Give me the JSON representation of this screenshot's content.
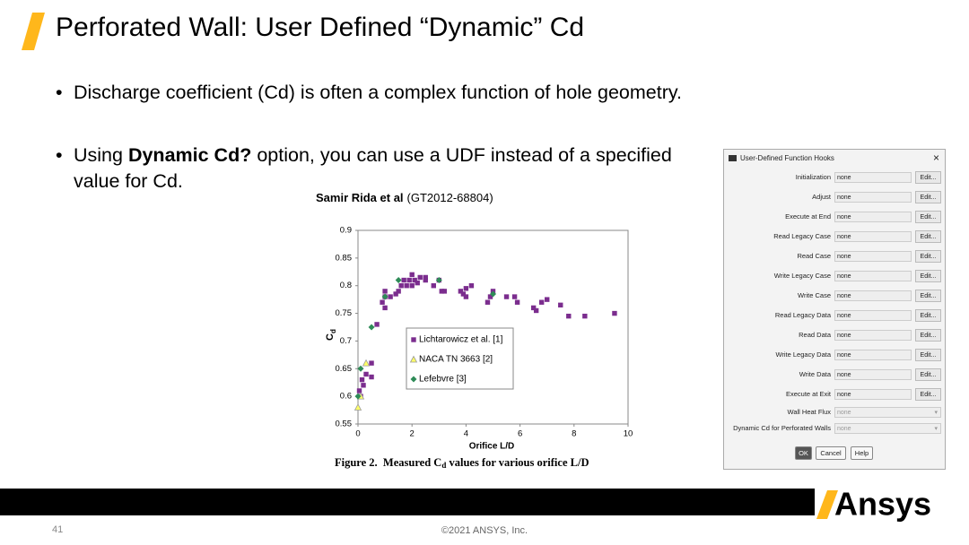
{
  "slide": {
    "title": "Perforated Wall: User Defined “Dynamic” Cd",
    "bullets": [
      {
        "text": "Discharge coefficient (Cd) is often a complex function of hole geometry."
      },
      {
        "prefix": "Using ",
        "bold": "Dynamic Cd?",
        "suffix": " option, you can use a UDF instead of a specified value for Cd."
      }
    ],
    "page_number": "41",
    "copyright": "©2021 ANSYS, Inc.",
    "logo": "Ansys"
  },
  "chart_data": {
    "type": "scatter",
    "title_bold": "Samir Rida et al",
    "title": "(GT2012-68804)",
    "caption": "Figure 2.  Measured C",
    "caption_sub": "d",
    "caption_rest": " values for various orifice L/D",
    "xlabel": "Orifice L/D",
    "ylabel": "C",
    "ylabel_sub": "d",
    "xlim": [
      0,
      10
    ],
    "xticks": [
      0,
      2,
      4,
      6,
      8,
      10
    ],
    "ylim": [
      0.55,
      0.9
    ],
    "yticks": [
      0.55,
      0.6,
      0.65,
      0.7,
      0.75,
      0.8,
      0.85,
      0.9
    ],
    "legend": "center",
    "series": [
      {
        "name": "Lichtarowicz et al. [1]",
        "color": "#7b2d8e",
        "marker": "square",
        "x": [
          0.05,
          0.1,
          0.15,
          0.2,
          0.3,
          0.5,
          0.5,
          0.7,
          0.9,
          1.0,
          1.0,
          1.0,
          1.2,
          1.4,
          1.5,
          1.6,
          1.7,
          1.8,
          1.9,
          2.0,
          2.0,
          2.1,
          2.2,
          2.3,
          2.5,
          2.5,
          2.8,
          3.0,
          3.1,
          3.2,
          3.8,
          3.9,
          4.0,
          4.0,
          4.2,
          4.8,
          4.9,
          5.0,
          5.5,
          5.8,
          5.9,
          6.5,
          6.6,
          6.8,
          7.0,
          7.5,
          7.8,
          8.4,
          9.5
        ],
        "values": [
          0.61,
          0.6,
          0.63,
          0.62,
          0.64,
          0.66,
          0.635,
          0.73,
          0.77,
          0.78,
          0.79,
          0.76,
          0.78,
          0.785,
          0.79,
          0.8,
          0.81,
          0.8,
          0.81,
          0.82,
          0.8,
          0.81,
          0.805,
          0.815,
          0.815,
          0.81,
          0.8,
          0.81,
          0.79,
          0.79,
          0.79,
          0.785,
          0.795,
          0.78,
          0.8,
          0.77,
          0.78,
          0.79,
          0.78,
          0.78,
          0.77,
          0.76,
          0.755,
          0.77,
          0.775,
          0.765,
          0.745,
          0.745,
          0.75
        ]
      },
      {
        "name": "NACA TN 3663 [2]",
        "color": "#ffff66",
        "marker": "triangle",
        "x": [
          0.0,
          0.1,
          0.3
        ],
        "values": [
          0.58,
          0.6,
          0.66
        ]
      },
      {
        "name": "Lefebvre [3]",
        "color": "#2e8b57",
        "marker": "diamond",
        "x": [
          0.0,
          0.1,
          0.5,
          1.0,
          1.5,
          3.0,
          5.0
        ],
        "values": [
          0.6,
          0.65,
          0.725,
          0.78,
          0.81,
          0.81,
          0.785
        ]
      }
    ]
  },
  "dialog": {
    "title": "User-Defined Function Hooks",
    "rows": [
      {
        "label": "Initialization",
        "value": "none",
        "button": "Edit..."
      },
      {
        "label": "Adjust",
        "value": "none",
        "button": "Edit..."
      },
      {
        "label": "Execute at End",
        "value": "none",
        "button": "Edit..."
      },
      {
        "label": "Read Legacy Case",
        "value": "none",
        "button": "Edit..."
      },
      {
        "label": "Read Case",
        "value": "none",
        "button": "Edit..."
      },
      {
        "label": "Write Legacy Case",
        "value": "none",
        "button": "Edit..."
      },
      {
        "label": "Write Case",
        "value": "none",
        "button": "Edit..."
      },
      {
        "label": "Read Legacy Data",
        "value": "none",
        "button": "Edit..."
      },
      {
        "label": "Read Data",
        "value": "none",
        "button": "Edit..."
      },
      {
        "label": "Write Legacy Data",
        "value": "none",
        "button": "Edit..."
      },
      {
        "label": "Write Data",
        "value": "none",
        "button": "Edit..."
      },
      {
        "label": "Execute at Exit",
        "value": "none",
        "button": "Edit..."
      }
    ],
    "dropdowns": [
      {
        "label": "Wall Heat Flux",
        "value": "none"
      },
      {
        "label": "Dynamic Cd for Perforated Walls",
        "value": "none"
      }
    ],
    "buttons": [
      "OK",
      "Cancel",
      "Help"
    ]
  }
}
